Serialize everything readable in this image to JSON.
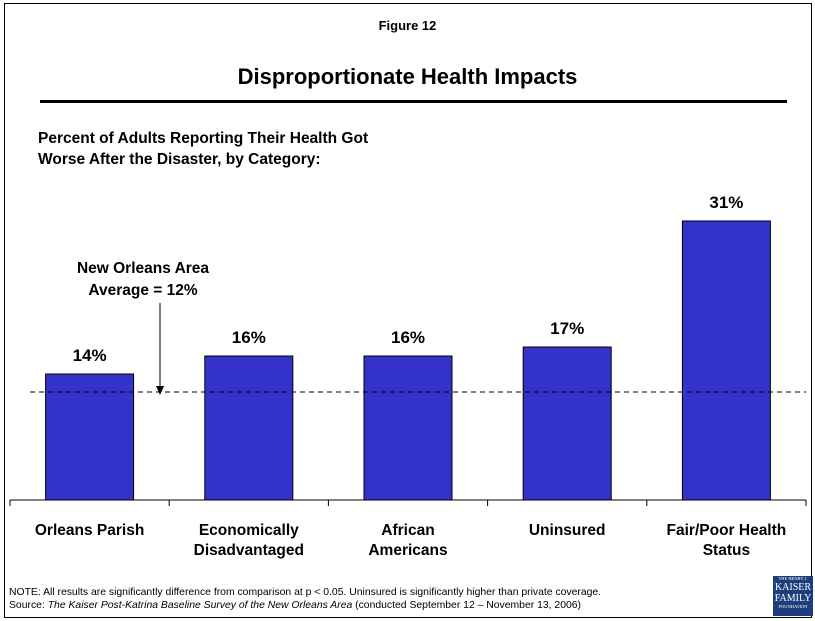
{
  "figure_label": "Figure 12",
  "title": "Disproportionate Health Impacts",
  "subtitle_lines": [
    "Percent of Adults Reporting Their Health Got",
    "Worse After the Disaster, by Category:"
  ],
  "average_label_lines": [
    "New Orleans Area",
    "Average = 12%"
  ],
  "note": {
    "line1": "NOTE: All results are significantly difference from comparison at p < 0.05.  Uninsured is significantly higher than private coverage.",
    "source_prefix": "Source: ",
    "source_title": "The Kaiser Post-Katrina Baseline Survey of the New Orleans Area",
    "source_suffix": " (conducted September 12 – November 13, 2006)"
  },
  "logo": {
    "line1": "THE HENRY J.",
    "line2": "KAISER",
    "line3": "FAMILY",
    "line4": "FOUNDATION"
  },
  "colors": {
    "bar": "#3333cc",
    "bar_border": "#000000"
  },
  "chart_data": {
    "type": "bar",
    "categories": [
      [
        "Orleans Parish"
      ],
      [
        "Economically",
        "Disadvantaged"
      ],
      [
        "African",
        "Americans"
      ],
      [
        "Uninsured"
      ],
      [
        "Fair/Poor Health",
        "Status"
      ]
    ],
    "values": [
      14,
      16,
      16,
      17,
      31
    ],
    "data_labels": [
      "14%",
      "16%",
      "16%",
      "17%",
      "31%"
    ],
    "reference_line": {
      "value": 12,
      "style": "dashed"
    },
    "ylim": [
      0,
      35
    ],
    "grid": false,
    "legend": false
  }
}
